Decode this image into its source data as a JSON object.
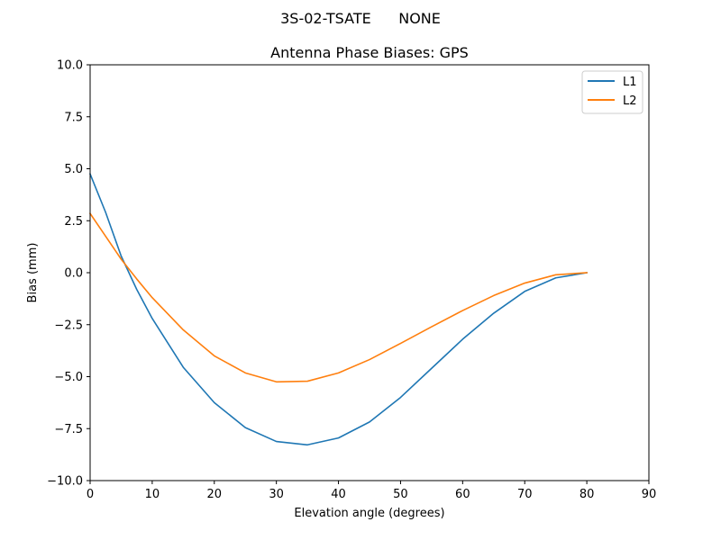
{
  "suptitle": "3S-02-TSATE      NONE",
  "chart_data": {
    "type": "line",
    "title": "Antenna Phase Biases: GPS",
    "xlabel": "Elevation angle (degrees)",
    "ylabel": "Bias (mm)",
    "xlim": [
      0,
      90
    ],
    "ylim": [
      -10,
      10
    ],
    "xticks": [
      0,
      10,
      20,
      30,
      40,
      50,
      60,
      70,
      80,
      90
    ],
    "xtick_labels": [
      "0",
      "10",
      "20",
      "30",
      "40",
      "50",
      "60",
      "70",
      "80",
      "90"
    ],
    "yticks": [
      -10,
      -7.5,
      -5,
      -2.5,
      0,
      2.5,
      5,
      7.5,
      10
    ],
    "ytick_labels": [
      "−10.0",
      "−7.5",
      "−5.0",
      "−2.5",
      "0.0",
      "2.5",
      "5.0",
      "7.5",
      "10.0"
    ],
    "grid": false,
    "legend_position": "top-right",
    "series": [
      {
        "name": "L1",
        "color": "#1f77b4",
        "x": [
          0,
          2.5,
          5,
          7.5,
          10,
          15,
          20,
          25,
          30,
          35,
          40,
          45,
          50,
          55,
          60,
          65,
          70,
          75,
          80
        ],
        "y": [
          4.75,
          2.9,
          0.8,
          -0.8,
          -2.2,
          -4.55,
          -6.25,
          -7.45,
          -8.12,
          -8.28,
          -7.95,
          -7.18,
          -6.0,
          -4.6,
          -3.2,
          -1.95,
          -0.9,
          -0.25,
          0.0
        ]
      },
      {
        "name": "L2",
        "color": "#ff7f0e",
        "x": [
          0,
          2.5,
          5,
          7.5,
          10,
          15,
          20,
          25,
          30,
          35,
          40,
          45,
          50,
          55,
          60,
          65,
          70,
          75,
          80
        ],
        "y": [
          2.85,
          1.75,
          0.65,
          -0.3,
          -1.2,
          -2.75,
          -4.0,
          -4.82,
          -5.25,
          -5.22,
          -4.82,
          -4.18,
          -3.4,
          -2.6,
          -1.82,
          -1.1,
          -0.5,
          -0.1,
          0.0
        ]
      }
    ]
  }
}
